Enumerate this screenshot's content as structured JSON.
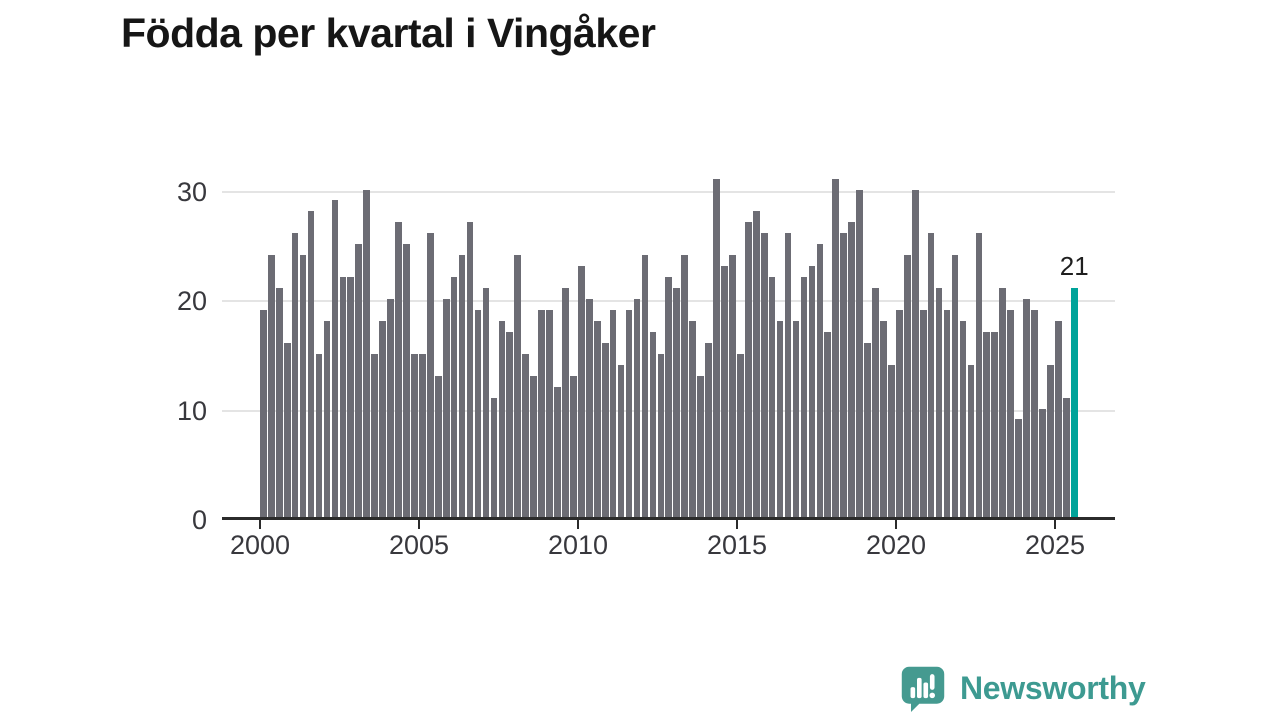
{
  "chart_data": {
    "type": "bar",
    "title": "Födda per kvartal i Vingåker",
    "x_unit": "quarter",
    "quarters_per_year": 4,
    "start_period": "2000 Q1",
    "end_period": "2025 Q3",
    "x_tick_labels": [
      "2000",
      "2005",
      "2010",
      "2015",
      "2020",
      "2025"
    ],
    "y_ticks": [
      0,
      10,
      20,
      30
    ],
    "ylim": [
      0,
      32
    ],
    "grid": "horizontal",
    "legend": "none",
    "bar_color": "#6c6c74",
    "values": [
      19,
      24,
      21,
      16,
      26,
      24,
      28,
      15,
      18,
      29,
      22,
      22,
      25,
      30,
      15,
      18,
      20,
      27,
      25,
      15,
      15,
      26,
      13,
      20,
      22,
      24,
      27,
      19,
      21,
      11,
      18,
      17,
      24,
      15,
      13,
      19,
      19,
      12,
      21,
      13,
      23,
      20,
      18,
      16,
      19,
      14,
      19,
      20,
      24,
      17,
      15,
      22,
      21,
      24,
      18,
      13,
      16,
      31,
      23,
      24,
      15,
      27,
      28,
      26,
      22,
      18,
      26,
      18,
      22,
      23,
      25,
      17,
      31,
      26,
      27,
      30,
      16,
      21,
      18,
      14,
      19,
      24,
      30,
      19,
      26,
      21,
      19,
      24,
      18,
      14,
      26,
      17,
      17,
      21,
      19,
      9,
      20,
      19,
      10,
      14,
      18,
      11,
      21
    ],
    "highlight": {
      "index": 102,
      "value": 21,
      "label": "21",
      "color": "#00a39a"
    }
  },
  "branding": {
    "name": "Newsworthy",
    "color": "#3d9a91",
    "icon": "newsworthy-speech-bubble-chart-icon"
  }
}
